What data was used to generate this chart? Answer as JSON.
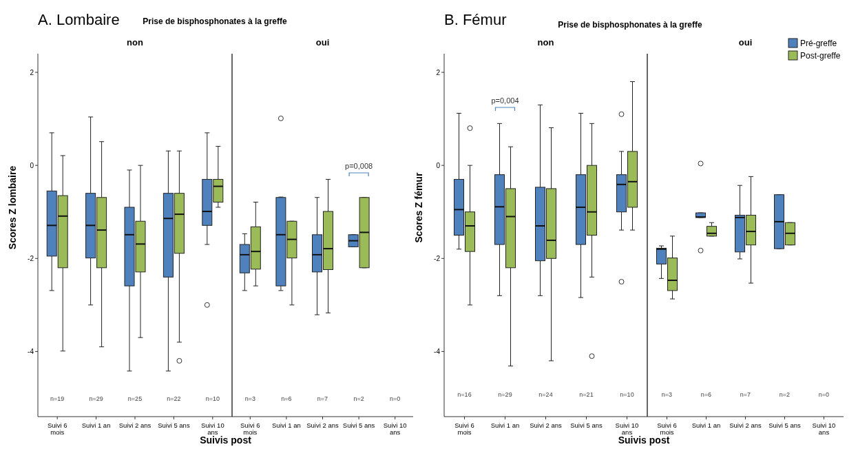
{
  "chart_data": [
    {
      "type": "box",
      "title": "A. Lombaire",
      "subtitle": "Prise de bisphosphonates à la greffe",
      "ylabel": "Scores Z lombaire",
      "xlabel": "Suivis post",
      "categories": [
        "Suivi 6 mois",
        "Suivi 1 an",
        "Suivi 2 ans",
        "Suivi 5 ans",
        "Suivi 10 ans"
      ],
      "ylim": [
        -5.4,
        2.4
      ],
      "yticks": [
        -4,
        -2,
        0,
        2
      ],
      "series": [
        {
          "color": "#4f81bd",
          "boxes": [
            {
              "low": -2.69,
              "q1": -1.95,
              "median": -1.29,
              "q3": -0.55,
              "high": 0.7
            },
            {
              "low": -3.0,
              "q1": -1.99,
              "median": -1.29,
              "q3": -0.6,
              "high": 1.04
            },
            {
              "low": -4.42,
              "q1": -2.59,
              "median": -1.49,
              "q3": -0.9,
              "high": -0.1
            },
            {
              "low": -4.42,
              "q1": -2.4,
              "median": -1.14,
              "q3": -0.6,
              "high": 0.31
            },
            {
              "low": -1.7,
              "q1": -1.29,
              "median": -0.99,
              "q3": -0.3,
              "high": 0.7,
              "outliers": [
                -3.0
              ]
            }
          ]
        },
        {
          "color": "#9bbb59",
          "boxes": [
            {
              "low": -3.99,
              "q1": -2.2,
              "median": -1.09,
              "q3": -0.65,
              "high": 0.21
            },
            {
              "low": -3.9,
              "q1": -2.2,
              "median": -1.39,
              "q3": -0.69,
              "high": 0.51
            },
            {
              "low": -3.7,
              "q1": -2.29,
              "median": -1.69,
              "q3": -1.2,
              "high": 0
            },
            {
              "low": -3.8,
              "q1": -1.89,
              "median": -1.05,
              "q3": -0.6,
              "high": 0.31,
              "outliers": [
                -4.2
              ]
            },
            {
              "low": -0.9,
              "q1": -0.79,
              "median": -0.45,
              "q3": -0.3,
              "high": 0.41
            }
          ]
        }
      ],
      "annotations": [
        "non",
        "n=19",
        "n=29",
        "n=25",
        "n=22",
        "n=10"
      ]
    },
    {
      "type": "box",
      "categories": [
        "Suivi 6 mois",
        "Suivi 1 an",
        "Suivi 2 ans",
        "Suivi 5 ans",
        "Suivi 10 ans"
      ],
      "ylim": [
        -5.4,
        2.4
      ],
      "tick_labels": "x",
      "series": [
        {
          "color": "#4f81bd",
          "boxes": [
            {
              "low": -2.69,
              "q1": -2.31,
              "median": -1.92,
              "q3": -1.7,
              "high": -1.47
            },
            {
              "low": -2.69,
              "q1": -2.59,
              "median": -1.49,
              "q3": -0.69,
              "high": -0.68,
              "outliers": [
                1.01
              ]
            },
            {
              "low": -3.21,
              "q1": -2.29,
              "median": -1.92,
              "q3": -1.49,
              "high": -0.69
            },
            {
              "low": -1.75,
              "q1": -1.75,
              "median": -1.62,
              "q3": -1.49,
              "high": -1.49
            },
            null
          ]
        },
        {
          "color": "#9bbb59",
          "boxes": [
            {
              "low": -2.59,
              "q1": -2.23,
              "median": -1.85,
              "q3": -1.32,
              "high": -0.79
            },
            {
              "low": -3.0,
              "q1": -1.99,
              "median": -1.59,
              "q3": -1.2,
              "high": -1.2
            },
            {
              "low": -3.17,
              "q1": -2.24,
              "median": -1.79,
              "q3": -0.99,
              "high": -0.3
            },
            {
              "low": -2.2,
              "q1": -2.2,
              "median": -1.44,
              "q3": -0.69,
              "high": -0.69
            },
            null
          ]
        }
      ],
      "annotations": [
        "oui",
        "p=0,008",
        "n=3",
        "n=6",
        "n=7",
        "n=2",
        "n=0"
      ]
    },
    {
      "type": "box",
      "title": "B. Fémur",
      "subtitle": "Prise de bisphosphonates à la greffe",
      "ylabel": "Scores Z fémur",
      "xlabel": "Suivis post",
      "categories": [
        "Suivi 6 mois",
        "Suivi 1 an",
        "Suivi 2 ans",
        "Suivi 5 ans",
        "Suivi 10 ans"
      ],
      "ylim": [
        -5.4,
        2.4
      ],
      "yticks": [
        -4,
        -2,
        0,
        2
      ],
      "series": [
        {
          "color": "#4f81bd",
          "boxes": [
            {
              "low": -1.8,
              "q1": -1.5,
              "median": -0.95,
              "q3": -0.3,
              "high": 1.12
            },
            {
              "low": -2.8,
              "q1": -1.7,
              "median": -0.89,
              "q3": -0.2,
              "high": 0.9
            },
            {
              "low": -2.8,
              "q1": -2.05,
              "median": -1.3,
              "q3": -0.47,
              "high": 1.3
            },
            {
              "low": -2.84,
              "q1": -1.7,
              "median": -0.9,
              "q3": -0.2,
              "high": 1.12
            },
            {
              "low": -1.39,
              "q1": -1.0,
              "median": -0.41,
              "q3": -0.2,
              "high": 0.3,
              "outliers": [
                1.1,
                -2.5
              ]
            }
          ]
        },
        {
          "color": "#9bbb59",
          "boxes": [
            {
              "low": -3.0,
              "q1": -1.85,
              "median": -1.3,
              "q3": -1.0,
              "high": 0,
              "outliers": [
                0.8
              ]
            },
            {
              "low": -4.31,
              "q1": -2.2,
              "median": -1.1,
              "q3": -0.5,
              "high": 0.4
            },
            {
              "low": -4.2,
              "q1": -2.0,
              "median": -1.61,
              "q3": -0.5,
              "high": 0.81
            },
            {
              "low": -2.4,
              "q1": -1.5,
              "median": -1.0,
              "q3": 0,
              "high": 0.9,
              "outliers": [
                -4.1
              ]
            },
            {
              "low": -1.39,
              "q1": -0.9,
              "median": -0.35,
              "q3": 0.3,
              "high": 1.8
            }
          ]
        }
      ],
      "annotations": [
        "non",
        "p=0,004",
        "n=16",
        "n=29",
        "n=24",
        "n=21",
        "n=10"
      ]
    },
    {
      "type": "box",
      "categories": [
        "Suivi 6 mois",
        "Suivi 1 an",
        "Suivi 2 ans",
        "Suivi 5 ans",
        "Suivi 10 ans"
      ],
      "ylim": [
        -5.4,
        2.4
      ],
      "tick_labels": "x",
      "legend": "top right",
      "series": [
        {
          "name": "Pré-greffe",
          "color": "#4f81bd",
          "boxes": [
            {
              "low": -2.43,
              "q1": -2.12,
              "median": -1.8,
              "q3": -1.78,
              "high": -1.73
            },
            {
              "low": -1.12,
              "q1": -1.12,
              "median": -1.11,
              "q3": -1.02,
              "high": -1.02,
              "outliers": [
                0.04,
                -1.83
              ]
            },
            {
              "low": -2.01,
              "q1": -1.86,
              "median": -1.12,
              "q3": -1.07,
              "high": -0.43
            },
            {
              "low": -1.79,
              "q1": -1.79,
              "median": -1.21,
              "q3": -0.63,
              "high": -0.63
            },
            null
          ]
        },
        {
          "name": "Post-greffe",
          "color": "#9bbb59",
          "boxes": [
            {
              "low": -2.87,
              "q1": -2.69,
              "median": -2.47,
              "q3": -1.99,
              "high": -1.52
            },
            {
              "low": -1.52,
              "q1": -1.52,
              "median": -1.46,
              "q3": -1.31,
              "high": -1.23
            },
            {
              "low": -2.53,
              "q1": -1.71,
              "median": -1.42,
              "q3": -1.07,
              "high": -0.24
            },
            {
              "low": -1.71,
              "q1": -1.71,
              "median": -1.46,
              "q3": -1.23,
              "high": -1.23
            },
            null
          ]
        }
      ],
      "annotations": [
        "oui",
        "n=3",
        "n=6",
        "n=7",
        "n=2",
        "n=0"
      ]
    }
  ]
}
